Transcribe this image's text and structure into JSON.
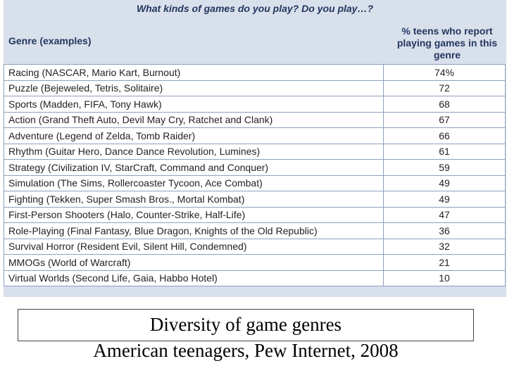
{
  "chart_data": {
    "type": "table",
    "title": "What kinds of games do you play? Do you play…?",
    "columns": [
      "Genre (examples)",
      "% teens who report playing games in this genre"
    ],
    "rows": [
      {
        "genre": "Racing (NASCAR, Mario Kart, Burnout)",
        "value": "74%"
      },
      {
        "genre": "Puzzle (Bejeweled, Tetris, Solitaire)",
        "value": "72"
      },
      {
        "genre": "Sports (Madden, FIFA, Tony Hawk)",
        "value": "68"
      },
      {
        "genre": "Action (Grand Theft Auto, Devil May Cry, Ratchet and Clank)",
        "value": "67"
      },
      {
        "genre": "Adventure (Legend of Zelda, Tomb Raider)",
        "value": "66"
      },
      {
        "genre": "Rhythm (Guitar Hero, Dance Dance Revolution, Lumines)",
        "value": "61"
      },
      {
        "genre": "Strategy (Civilization IV, StarCraft, Command and Conquer)",
        "value": "59"
      },
      {
        "genre": "Simulation (The Sims, Rollercoaster Tycoon, Ace Combat)",
        "value": "49"
      },
      {
        "genre": "Fighting (Tekken, Super Smash Bros., Mortal Kombat)",
        "value": "49"
      },
      {
        "genre": "First-Person Shooters (Halo, Counter-Strike, Half-Life)",
        "value": "47"
      },
      {
        "genre": "Role-Playing (Final Fantasy, Blue Dragon, Knights of the Old Republic)",
        "value": "36"
      },
      {
        "genre": "Survival Horror (Resident Evil, Silent Hill, Condemned)",
        "value": "32"
      },
      {
        "genre": "MMOGs (World of Warcraft)",
        "value": "21"
      },
      {
        "genre": "Virtual Worlds (Second Life, Gaia, Habbo Hotel)",
        "value": "10"
      }
    ]
  },
  "header": {
    "genre_col": "Genre (examples)",
    "pct_col_lines": [
      "% teens who report",
      "playing games in this",
      "genre"
    ]
  },
  "caption": {
    "line1": "Diversity of game genres",
    "line2": "American teenagers, Pew Internet, 2008"
  },
  "colors": {
    "header_bg": "#d8e0ec",
    "header_text": "#24365e",
    "grid": "#8ea0bc"
  }
}
